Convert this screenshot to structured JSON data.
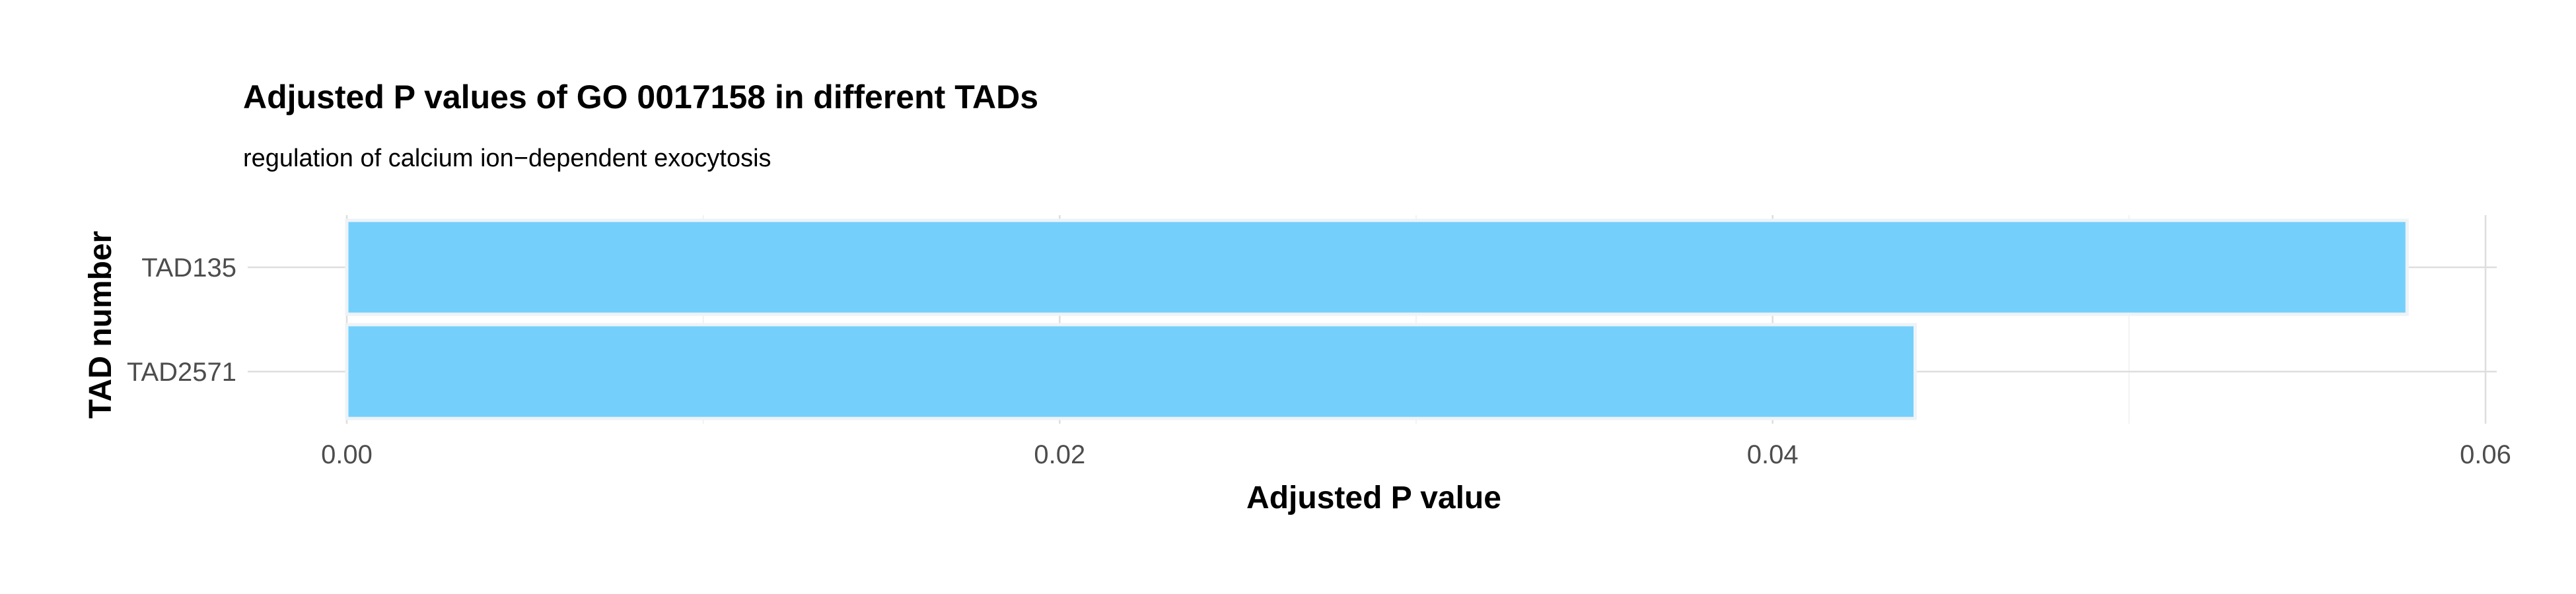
{
  "chart_data": {
    "type": "bar",
    "orientation": "horizontal",
    "title": "Adjusted P values of GO 0017158 in different TADs",
    "subtitle": "regulation of calcium ion−dependent exocytosis",
    "xlabel": "Adjusted P value",
    "ylabel": "TAD number",
    "categories": [
      "TAD135",
      "TAD2571"
    ],
    "values": [
      0.0578,
      0.044
    ],
    "xlim": [
      0,
      0.0607
    ],
    "xticks": [
      0.0,
      0.02,
      0.04,
      0.06
    ],
    "xtick_labels": [
      "0.00",
      "0.02",
      "0.04",
      "0.06"
    ],
    "grid": true,
    "bar_color": "#75cffb"
  }
}
